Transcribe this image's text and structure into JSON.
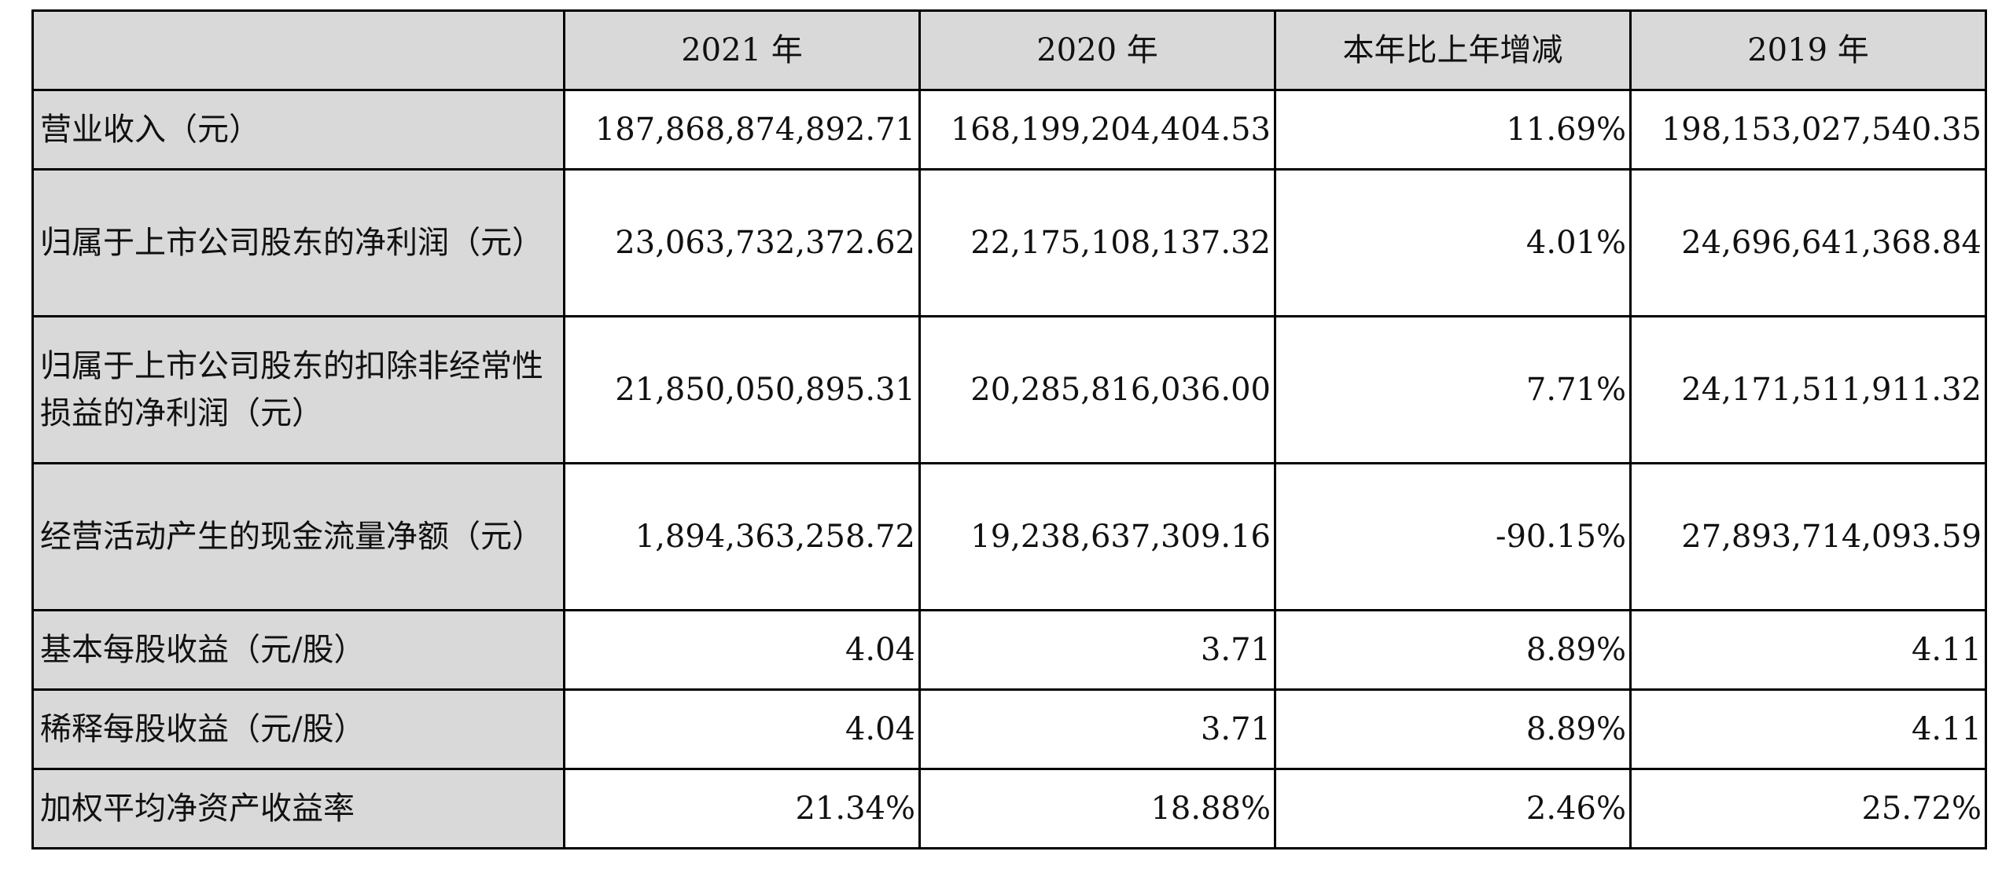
{
  "table": {
    "headers": [
      "",
      "2021 年",
      "2020 年",
      "本年比上年增减",
      "2019 年"
    ],
    "rows": [
      {
        "label": "营业收入（元）",
        "values": [
          "187,868,874,892.71",
          "168,199,204,404.53",
          "11.69%",
          "198,153,027,540.35"
        ]
      },
      {
        "label": "归属于上市公司股东的净利润（元）",
        "values": [
          "23,063,732,372.62",
          "22,175,108,137.32",
          "4.01%",
          "24,696,641,368.84"
        ]
      },
      {
        "label": "归属于上市公司股东的扣除非经常性损益的净利润（元）",
        "values": [
          "21,850,050,895.31",
          "20,285,816,036.00",
          "7.71%",
          "24,171,511,911.32"
        ]
      },
      {
        "label": "经营活动产生的现金流量净额（元）",
        "values": [
          "1,894,363,258.72",
          "19,238,637,309.16",
          "-90.15%",
          "27,893,714,093.59"
        ]
      },
      {
        "label": "基本每股收益（元/股）",
        "values": [
          "4.04",
          "3.71",
          "8.89%",
          "4.11"
        ]
      },
      {
        "label": "稀释每股收益（元/股）",
        "values": [
          "4.04",
          "3.71",
          "8.89%",
          "4.11"
        ]
      },
      {
        "label": "加权平均净资产收益率",
        "values": [
          "21.34%",
          "18.88%",
          "2.46%",
          "25.72%"
        ]
      }
    ]
  }
}
